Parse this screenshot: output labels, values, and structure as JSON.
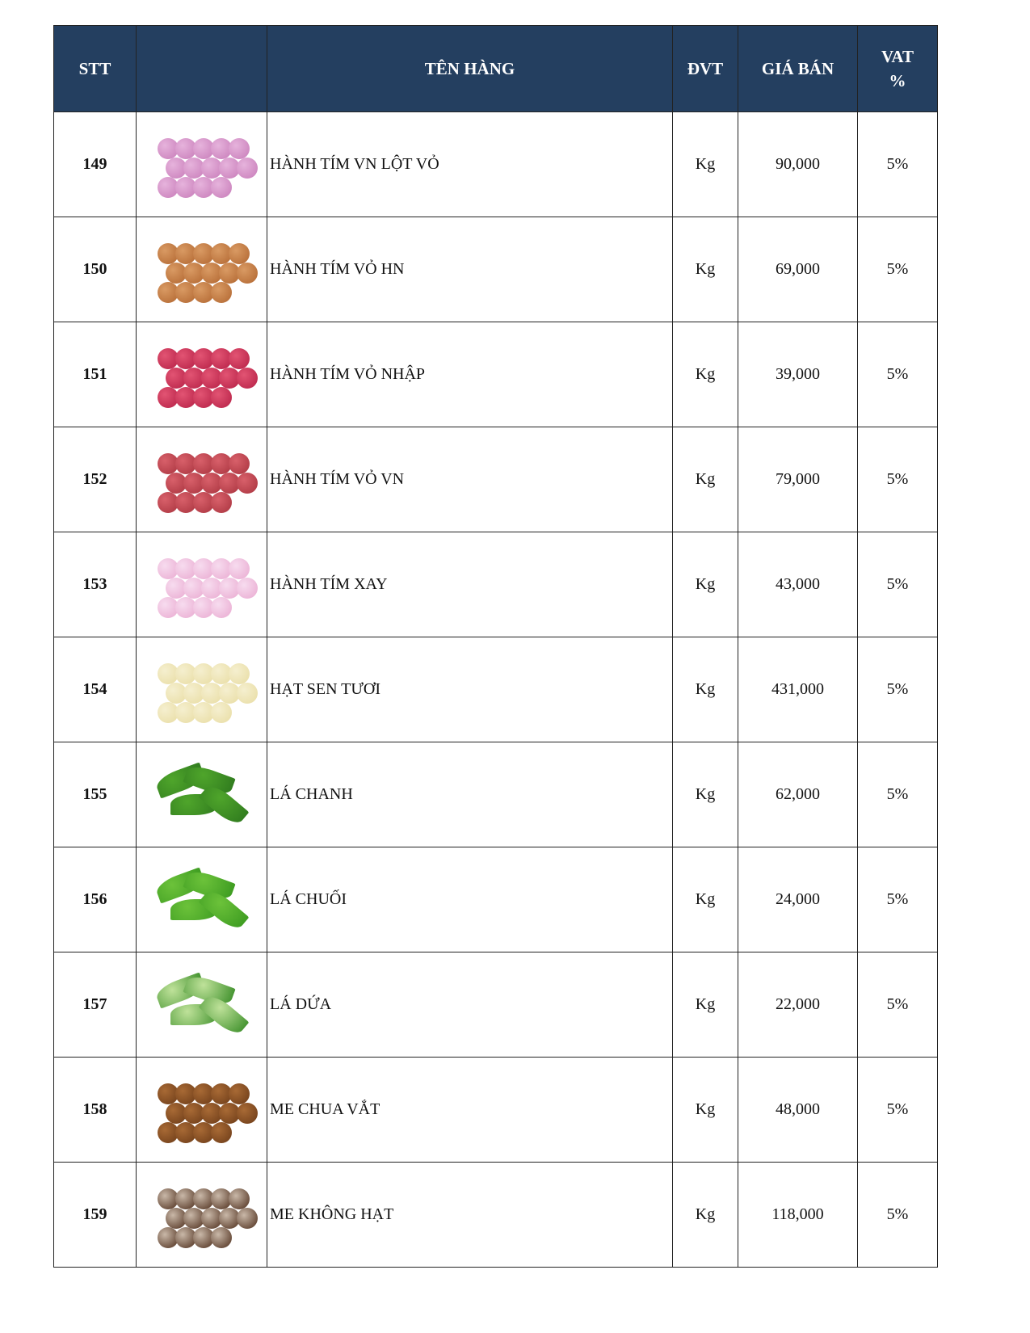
{
  "header": {
    "stt": "STT",
    "image": "",
    "name": "TÊN HÀNG",
    "unit": "ĐVT",
    "price": "GIÁ BÁN",
    "vat_line1": "VAT",
    "vat_line2": "%"
  },
  "rows": [
    {
      "stt": "149",
      "name": "HÀNH TÍM VN LỘT VỎ",
      "unit": "Kg",
      "price": "90,000",
      "vat": "5%",
      "image": "peeled-shallots",
      "colors": [
        "#c77bb8",
        "#e6b3dc"
      ]
    },
    {
      "stt": "150",
      "name": "HÀNH TÍM VỎ HN",
      "unit": "Kg",
      "price": "69,000",
      "vat": "5%",
      "image": "shallots-hn",
      "colors": [
        "#b0652f",
        "#d99a63"
      ]
    },
    {
      "stt": "151",
      "name": "HÀNH TÍM VỎ NHẬP",
      "unit": "Kg",
      "price": "39,000",
      "vat": "5%",
      "image": "imported-shallots",
      "colors": [
        "#b51f45",
        "#e25473"
      ]
    },
    {
      "stt": "152",
      "name": "HÀNH TÍM VỎ VN",
      "unit": "Kg",
      "price": "79,000",
      "vat": "5%",
      "image": "shallots-vn",
      "colors": [
        "#a8333e",
        "#d8606a"
      ]
    },
    {
      "stt": "153",
      "name": "HÀNH TÍM XAY",
      "unit": "Kg",
      "price": "43,000",
      "vat": "5%",
      "image": "minced-shallots",
      "colors": [
        "#e9a9d0",
        "#f7dcef"
      ]
    },
    {
      "stt": "154",
      "name": "HẠT SEN TƯƠI",
      "unit": "Kg",
      "price": "431,000",
      "vat": "5%",
      "image": "lotus-seeds",
      "colors": [
        "#e8dca2",
        "#f5efcf"
      ]
    },
    {
      "stt": "155",
      "name": "LÁ CHANH",
      "unit": "Kg",
      "price": "62,000",
      "vat": "5%",
      "image": "lime-leaves",
      "colors": [
        "#2f7a1e",
        "#4fa52b"
      ]
    },
    {
      "stt": "156",
      "name": "LÁ CHUỐI",
      "unit": "Kg",
      "price": "24,000",
      "vat": "5%",
      "image": "banana-leaf",
      "colors": [
        "#3b9a20",
        "#6cc23a"
      ]
    },
    {
      "stt": "157",
      "name": "LÁ DỨA",
      "unit": "Kg",
      "price": "22,000",
      "vat": "5%",
      "image": "pandan-leaves",
      "colors": [
        "#3d8f2a",
        "#bfe29a"
      ]
    },
    {
      "stt": "158",
      "name": "ME CHUA VẮT",
      "unit": "Kg",
      "price": "48,000",
      "vat": "5%",
      "image": "tamarind-block",
      "colors": [
        "#6b3a17",
        "#a86a35"
      ]
    },
    {
      "stt": "159",
      "name": "ME KHÔNG HẠT",
      "unit": "Kg",
      "price": "118,000",
      "vat": "5%",
      "image": "seedless-tamarind",
      "colors": [
        "#4a2a18",
        "#c9b8a8"
      ]
    }
  ]
}
